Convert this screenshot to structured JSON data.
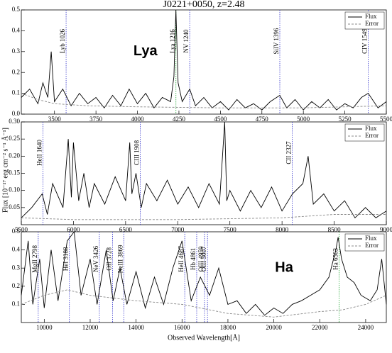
{
  "chart_data": [
    {
      "type": "line",
      "title": "J0221+0050, z=2.48",
      "annotation": "Lya",
      "legend": "upper right",
      "xlim": [
        3300,
        5500
      ],
      "xticks": [
        3500,
        3750,
        4000,
        4250,
        4500,
        4750,
        5000,
        5250,
        5500
      ],
      "ylim": [
        0,
        0.5
      ],
      "yticks": [
        {
          "value": 0,
          "label": "0.0"
        },
        0.1,
        0.2,
        0.3,
        0.4,
        0.5
      ],
      "series": [
        {
          "name": "Flux",
          "color": "#000000",
          "style": "solid",
          "x": [
            3300,
            3350,
            3400,
            3430,
            3460,
            3480,
            3500,
            3550,
            3600,
            3650,
            3700,
            3750,
            3800,
            3850,
            3900,
            3950,
            4000,
            4050,
            4100,
            4150,
            4200,
            4220,
            4232,
            4245,
            4270,
            4315,
            4350,
            4400,
            4450,
            4500,
            4550,
            4600,
            4650,
            4700,
            4750,
            4800,
            4858,
            4900,
            4950,
            5000,
            5050,
            5100,
            5150,
            5200,
            5250,
            5300,
            5350,
            5391,
            5450,
            5500
          ],
          "values": [
            0.08,
            0.12,
            0.05,
            0.15,
            0.08,
            0.3,
            0.06,
            0.12,
            0.04,
            0.1,
            0.05,
            0.08,
            0.03,
            0.09,
            0.04,
            0.12,
            0.05,
            0.1,
            0.03,
            0.08,
            0.06,
            0.18,
            0.5,
            0.15,
            0.06,
            0.12,
            0.04,
            0.08,
            0.03,
            0.06,
            0.02,
            0.07,
            0.03,
            0.05,
            0.02,
            0.06,
            0.09,
            0.03,
            0.07,
            0.02,
            0.06,
            0.03,
            0.07,
            0.02,
            0.05,
            0.03,
            0.08,
            0.1,
            0.03,
            0.06
          ]
        },
        {
          "name": "Error",
          "color": "#888888",
          "style": "dashed",
          "x": [
            3300,
            3400,
            3500,
            3700,
            4000,
            4500,
            5000,
            5500
          ],
          "values": [
            0.1,
            0.07,
            0.05,
            0.04,
            0.035,
            0.03,
            0.03,
            0.04
          ]
        }
      ],
      "lines": [
        {
          "label": "Lyb 1026",
          "x": 3570,
          "color": "#3333cc"
        },
        {
          "label": "Lya 1216",
          "x": 4232,
          "color": "#22aa33"
        },
        {
          "label": "NV 1240",
          "x": 4315,
          "color": "#3333cc"
        },
        {
          "label": "SiIV 1396",
          "x": 4858,
          "color": "#3333cc"
        },
        {
          "label": "CIV 1549",
          "x": 5391,
          "color": "#3333cc"
        }
      ]
    },
    {
      "type": "line",
      "ylabel": "Flux [10⁻¹⁷ erg cm⁻² s⁻¹ Å⁻¹]",
      "legend": "upper right",
      "xlim": [
        5500,
        9000
      ],
      "xticks": [
        5500,
        6000,
        6500,
        7000,
        7500,
        8000,
        8500,
        9000
      ],
      "ylim": [
        0,
        0.3
      ],
      "yticks": [
        0.05,
        {
          "value": 0.1,
          "label": "0.10"
        },
        0.15,
        {
          "value": 0.2,
          "label": "0.20"
        },
        0.25,
        {
          "value": 0.3,
          "label": "0.30"
        }
      ],
      "series": [
        {
          "name": "Flux",
          "color": "#000000",
          "style": "solid",
          "x": [
            5500,
            5600,
            5700,
            5750,
            5800,
            5900,
            5950,
            5980,
            6000,
            6050,
            6100,
            6150,
            6200,
            6300,
            6400,
            6500,
            6540,
            6560,
            6600,
            6650,
            6700,
            6800,
            6900,
            7000,
            7100,
            7200,
            7300,
            7400,
            7450,
            7470,
            7500,
            7600,
            7700,
            7800,
            7900,
            8000,
            8100,
            8200,
            8250,
            8300,
            8400,
            8500,
            8600,
            8700,
            8800,
            8900,
            9000
          ],
          "values": [
            0.02,
            0.05,
            0.09,
            0.03,
            0.12,
            0.05,
            0.25,
            0.08,
            0.24,
            0.07,
            0.15,
            0.05,
            0.12,
            0.06,
            0.14,
            0.07,
            0.24,
            0.09,
            0.15,
            0.05,
            0.12,
            0.07,
            0.13,
            0.06,
            0.11,
            0.05,
            0.12,
            0.06,
            0.3,
            0.07,
            0.1,
            0.04,
            0.1,
            0.05,
            0.11,
            0.04,
            0.09,
            0.12,
            0.2,
            0.06,
            0.09,
            0.04,
            0.07,
            0.02,
            0.05,
            0.02,
            0.04
          ]
        },
        {
          "name": "Error",
          "color": "#888888",
          "style": "dashed",
          "x": [
            5500,
            6000,
            7000,
            8000,
            8500,
            9000
          ],
          "values": [
            0.02,
            0.015,
            0.015,
            0.02,
            0.03,
            0.03
          ]
        }
      ],
      "lines": [
        {
          "label": "HeII 1640",
          "x": 5707,
          "color": "#3333cc"
        },
        {
          "label": "CIII 1908",
          "x": 6640,
          "color": "#3333cc"
        },
        {
          "label": "CII 2327",
          "x": 8098,
          "color": "#3333cc"
        }
      ]
    },
    {
      "type": "line",
      "xlabel": "Observed Wavelength[Å]",
      "annotation": "Ha",
      "legend": "upper right",
      "xlim": [
        9000,
        24900
      ],
      "xticks": [
        10000,
        12000,
        14000,
        16000,
        18000,
        20000,
        22000,
        24000
      ],
      "ylim": [
        0,
        0.5
      ],
      "yticks": [
        0.1,
        0.2,
        0.3,
        0.4,
        0.5
      ],
      "series": [
        {
          "name": "Flux",
          "color": "#000000",
          "style": "solid",
          "x": [
            9000,
            9300,
            9500,
            9800,
            10000,
            10300,
            10600,
            11000,
            11300,
            11600,
            12000,
            12300,
            12700,
            13000,
            13300,
            13600,
            14000,
            14400,
            14800,
            15200,
            15600,
            16000,
            16400,
            16800,
            17200,
            17600,
            18000,
            18400,
            18800,
            19200,
            19600,
            20000,
            20400,
            20800,
            21200,
            21600,
            22000,
            22400,
            22700,
            22800,
            22950,
            23200,
            23500,
            23800,
            24200,
            24500,
            24700,
            24900
          ],
          "values": [
            0.15,
            0.45,
            0.1,
            0.35,
            0.08,
            0.4,
            0.12,
            0.45,
            0.5,
            0.15,
            0.35,
            0.1,
            0.4,
            0.12,
            0.3,
            0.1,
            0.28,
            0.08,
            0.25,
            0.1,
            0.3,
            0.45,
            0.12,
            0.25,
            0.15,
            0.3,
            0.1,
            0.12,
            0.05,
            0.1,
            0.04,
            0.08,
            0.05,
            0.1,
            0.12,
            0.15,
            0.18,
            0.25,
            0.4,
            0.47,
            0.35,
            0.25,
            0.22,
            0.15,
            0.12,
            0.18,
            0.35,
            0.1
          ]
        },
        {
          "name": "Error",
          "color": "#888888",
          "style": "dashed",
          "x": [
            9000,
            10000,
            11000,
            12000,
            14000,
            16000,
            18000,
            20000,
            22000,
            23000,
            24000,
            24900
          ],
          "values": [
            0.1,
            0.15,
            0.18,
            0.15,
            0.12,
            0.1,
            0.05,
            0.03,
            0.06,
            0.07,
            0.1,
            0.15
          ]
        }
      ],
      "lines": [
        {
          "label": "MgII 2798",
          "x": 9737,
          "color": "#3333cc"
        },
        {
          "label": "HeI 3188",
          "x": 11094,
          "color": "#3333cc"
        },
        {
          "label": "NeV 3426",
          "x": 12400,
          "color": "#3333cc"
        },
        {
          "label": "OII 3728",
          "x": 12973,
          "color": "#3333cc"
        },
        {
          "label": "NeIII 3869",
          "x": 13464,
          "color": "#3333cc"
        },
        {
          "label": "HeII 4687",
          "x": 16120,
          "color": "#3333cc"
        },
        {
          "label": "Hb 4861",
          "x": 16640,
          "color": "#3333cc"
        },
        {
          "label": "OIII 4959",
          "x": 16980,
          "color": "#3333cc"
        },
        {
          "label": "OIII 5007",
          "x": 17110,
          "color": "#3333cc"
        },
        {
          "label": "Ha 6563",
          "x": 22840,
          "color": "#22aa33"
        }
      ]
    }
  ]
}
